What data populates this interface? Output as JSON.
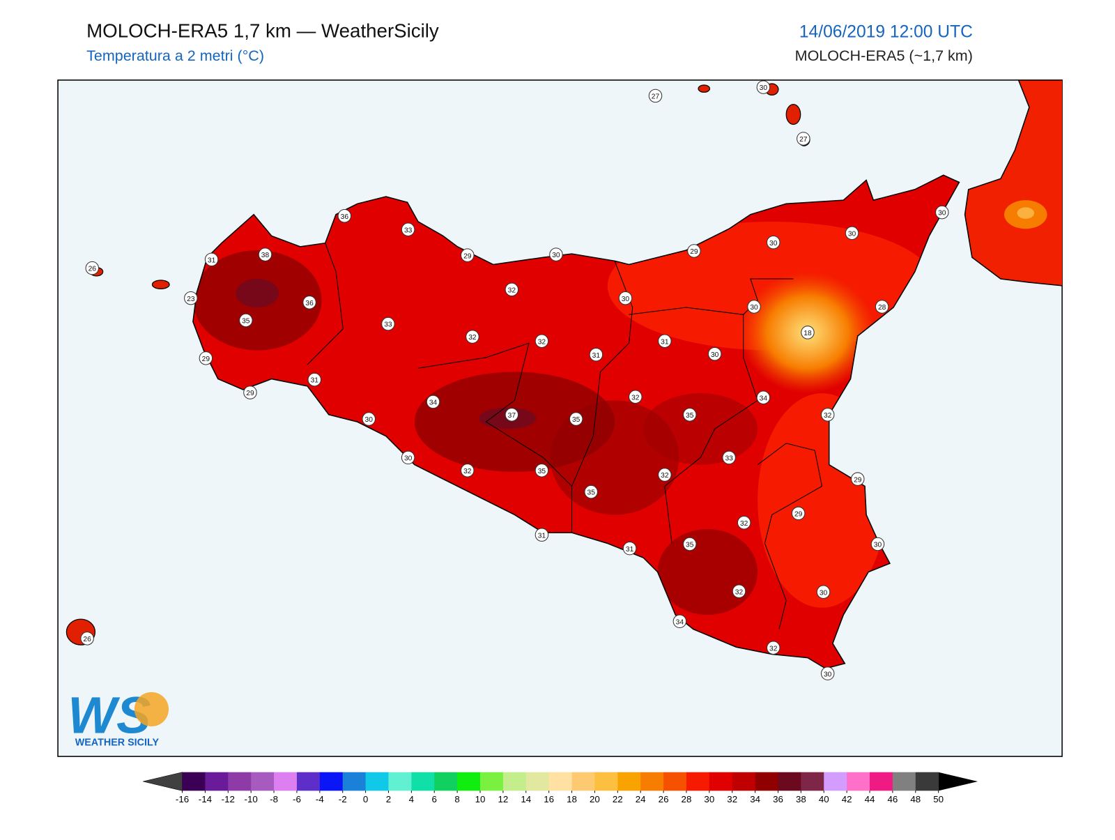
{
  "header": {
    "title": "MOLOCH-ERA5 1,7 km — WeatherSicily",
    "subtitle": "Temperatura a 2 metri (°C)",
    "datetime": "14/06/2019 12:00 UTC",
    "model": "MOLOCH-ERA5 (~1,7 km)"
  },
  "map": {
    "stations": [
      27,
      30,
      27,
      30,
      30,
      30,
      29,
      36,
      33,
      29,
      30,
      31,
      38,
      26,
      23,
      36,
      35,
      33,
      32,
      30,
      30,
      28,
      18,
      32,
      32,
      31,
      31,
      30,
      29,
      31,
      29,
      34,
      32,
      34,
      37,
      35,
      35,
      32,
      30,
      30,
      33,
      32,
      35,
      32,
      29,
      35,
      29,
      32,
      31,
      35,
      30,
      31,
      32,
      30,
      34,
      26,
      32,
      30
    ]
  },
  "logo": {
    "mark": "WS",
    "text": "WEATHER SICILY"
  },
  "colorbar": {
    "ticks": [
      -16,
      -14,
      -12,
      -10,
      -8,
      -6,
      -4,
      -2,
      0,
      2,
      4,
      6,
      8,
      10,
      12,
      14,
      16,
      18,
      20,
      22,
      24,
      26,
      28,
      30,
      32,
      34,
      36,
      38,
      40,
      42,
      44,
      46,
      48,
      50
    ],
    "colors": [
      "#3b0055",
      "#6a1b9a",
      "#8e3ba8",
      "#a85bbf",
      "#dd7ff0",
      "#5d2ec8",
      "#0a16f5",
      "#1a80d8",
      "#10c8e8",
      "#62f0d2",
      "#10e0a8",
      "#10d060",
      "#10ee10",
      "#7af040",
      "#c4ee8c",
      "#e2e8a0",
      "#ffe1a3",
      "#fdca72",
      "#fcbf40",
      "#f9a300",
      "#f77d00",
      "#f55100",
      "#f51a00",
      "#e00000",
      "#c00000",
      "#900000",
      "#6b0a1f",
      "#7d2648",
      "#d39cff",
      "#ff70c8",
      "#f01a85",
      "#808080",
      "#3a3a3a"
    ],
    "under_color": "#404040",
    "over_color": "#000000"
  }
}
